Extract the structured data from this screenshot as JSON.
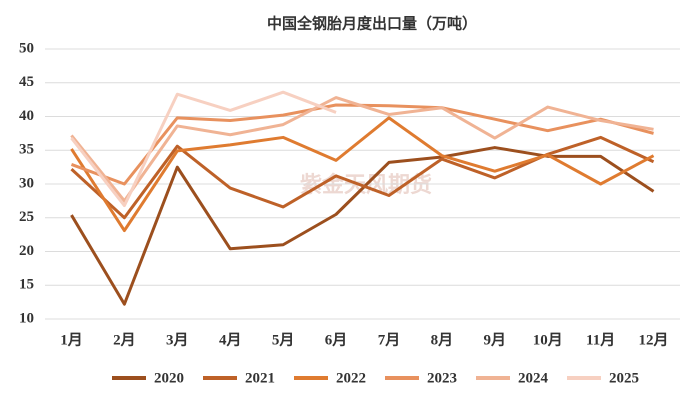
{
  "chart_data": {
    "type": "line",
    "title": "中国全钢胎月度出口量（万吨）",
    "watermark": "紫金天风期货",
    "categories": [
      "1月",
      "2月",
      "3月",
      "4月",
      "5月",
      "6月",
      "7月",
      "8月",
      "9月",
      "10月",
      "11月",
      "12月"
    ],
    "series": [
      {
        "name": "2020",
        "color": "#9c4f1e",
        "values": [
          25.4,
          12.2,
          32.5,
          20.4,
          21.0,
          25.5,
          33.2,
          34.0,
          35.4,
          34.1,
          34.1,
          28.9
        ]
      },
      {
        "name": "2021",
        "color": "#be6128",
        "values": [
          32.2,
          25.0,
          35.6,
          29.4,
          26.6,
          31.2,
          28.3,
          33.7,
          30.9,
          34.4,
          36.9,
          33.3
        ]
      },
      {
        "name": "2022",
        "color": "#df7b30",
        "values": [
          35.2,
          23.1,
          34.9,
          35.8,
          36.9,
          33.5,
          39.8,
          34.2,
          31.9,
          34.3,
          30.0,
          34.2
        ]
      },
      {
        "name": "2023",
        "color": "#e8915e",
        "values": [
          32.9,
          30.0,
          39.8,
          39.4,
          40.2,
          41.7,
          41.6,
          41.3,
          39.6,
          37.9,
          39.6,
          37.5
        ]
      },
      {
        "name": "2024",
        "color": "#f0b394",
        "values": [
          37.2,
          27.5,
          38.6,
          37.3,
          38.8,
          42.8,
          40.3,
          41.3,
          36.8,
          41.4,
          39.4,
          38.1
        ]
      },
      {
        "name": "2025",
        "color": "#f7d0c1",
        "values": [
          36.8,
          26.8,
          43.3,
          40.9,
          43.6,
          40.6,
          null,
          null,
          null,
          null,
          null,
          null
        ]
      }
    ],
    "ylim": [
      10,
      50
    ],
    "yticks": [
      10,
      15,
      20,
      25,
      30,
      35,
      40,
      45,
      50
    ],
    "grid": true,
    "legend": "bottom"
  }
}
